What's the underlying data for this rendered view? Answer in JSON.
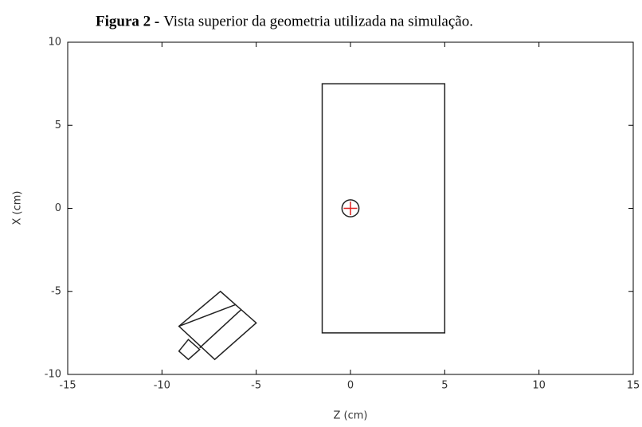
{
  "chart_data": {
    "type": "geometry",
    "title_label": "Figura 2 -",
    "title": "Vista superior da geometria utilizada na simulação.",
    "x_label": "Z (cm)",
    "y_label": "X (cm)",
    "xlim": [
      -15,
      15
    ],
    "ylim": [
      -10,
      10
    ],
    "xticks": [
      -15,
      -10,
      -5,
      0,
      5,
      10,
      15
    ],
    "yticks": [
      -10,
      -5,
      0,
      5,
      10
    ],
    "shapes": [
      {
        "z": [
          -1.5,
          5,
          5,
          -1.5
        ],
        "x": [
          7.5,
          7.5,
          -7.5,
          -7.5
        ]
      },
      {
        "z": [
          -6.9,
          -5,
          -7.2,
          -9.1
        ],
        "x": [
          -5,
          -6.9,
          -9.1,
          -7.1
        ]
      },
      {
        "z": [
          -9.1,
          -6.1
        ],
        "x": [
          -7.1,
          -5.8
        ]
      },
      {
        "z": [
          -5.8,
          -8.0
        ],
        "x": [
          -6.1,
          -8.4
        ]
      },
      {
        "z": [
          -8.6,
          -9.1,
          -8.6,
          -8.0
        ],
        "x": [
          -7.9,
          -8.6,
          -9.1,
          -8.5
        ]
      }
    ],
    "circle": {
      "z": 0,
      "x": 0,
      "r": 0.45
    },
    "color": "#222",
    "marker_color": "#e02020"
  }
}
